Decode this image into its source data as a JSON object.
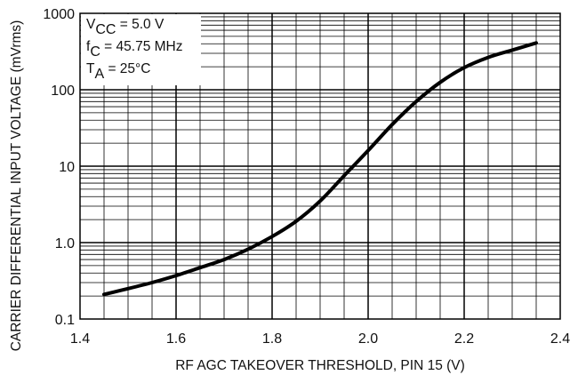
{
  "chart_data": {
    "type": "line",
    "title": "",
    "xlabel": "RF AGC TAKEOVER THRESHOLD, PIN 15 (V)",
    "ylabel": "CARRIER DIFFERENTIAL INPUT VOLTAGE (mVrms)",
    "xlim": [
      1.4,
      2.4
    ],
    "ylim": [
      0.1,
      1000
    ],
    "yscale": "log",
    "grid": true,
    "x_ticks": [
      "1.4",
      "1.6",
      "1.8",
      "2.0",
      "2.2",
      "2.4"
    ],
    "y_ticks": [
      "0.1",
      "1.0",
      "10",
      "100",
      "1000"
    ],
    "annotations": [
      {
        "main": "V",
        "sub": "CC",
        "rest": " = 5.0 V"
      },
      {
        "main": "f",
        "sub": "C",
        "rest": " = 45.75 MHz"
      },
      {
        "main": "T",
        "sub": "A",
        "rest": " = 25°C"
      }
    ],
    "series": [
      {
        "x": [
          1.45,
          1.5,
          1.55,
          1.6,
          1.65,
          1.7,
          1.75,
          1.8,
          1.85,
          1.9,
          1.95,
          2.0,
          2.05,
          2.1,
          2.15,
          2.2,
          2.25,
          2.3,
          2.35
        ],
        "y": [
          0.21,
          0.25,
          0.3,
          0.37,
          0.47,
          0.6,
          0.82,
          1.2,
          1.9,
          3.5,
          7.5,
          16,
          35,
          70,
          125,
          195,
          265,
          330,
          410
        ]
      }
    ]
  }
}
